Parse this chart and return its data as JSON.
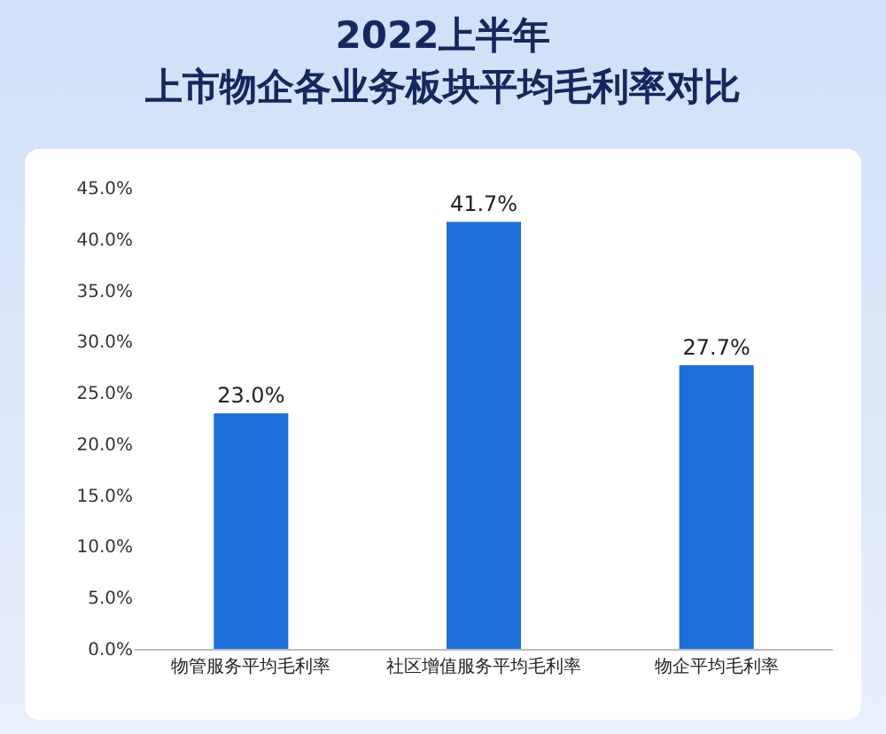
{
  "chart_data": {
    "type": "bar",
    "title": "2022上半年",
    "subtitle": "上市物企各业务板块平均毛利率对比",
    "categories": [
      "物管服务平均毛利率",
      "社区增值服务平均毛利率",
      "物企平均毛利率"
    ],
    "values": [
      23.0,
      41.7,
      27.7
    ],
    "value_labels": [
      "23.0%",
      "41.7%",
      "27.7%"
    ],
    "color": "#1e6fd9",
    "ylim": [
      0,
      45
    ],
    "yticks": [
      {
        "value": 0,
        "label": "0.0%"
      },
      {
        "value": 5,
        "label": "5.0%"
      },
      {
        "value": 10,
        "label": "10.0%"
      },
      {
        "value": 15,
        "label": "15.0%"
      },
      {
        "value": 20,
        "label": "20.0%"
      },
      {
        "value": 25,
        "label": "25.0%"
      },
      {
        "value": 30,
        "label": "30.0%"
      },
      {
        "value": 35,
        "label": "35.0%"
      },
      {
        "value": 40,
        "label": "40.0%"
      },
      {
        "value": 45,
        "label": "45.0%"
      }
    ],
    "grid": false,
    "legend": false
  }
}
